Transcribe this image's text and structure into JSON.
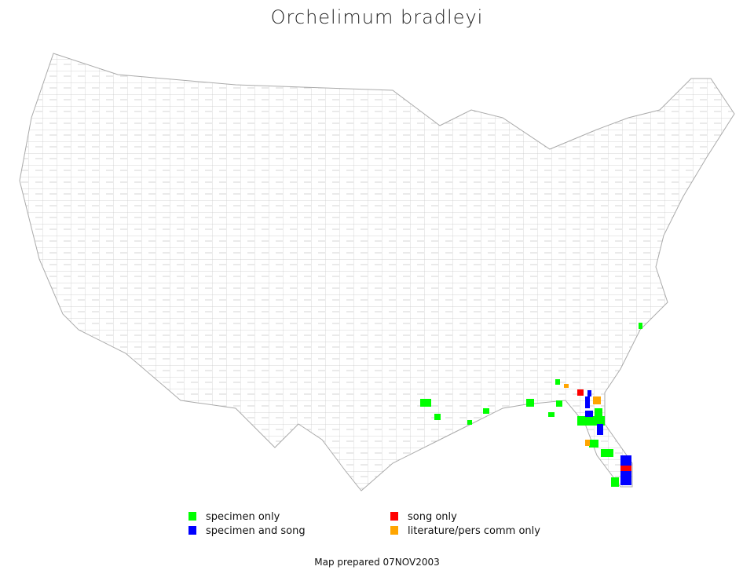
{
  "title": "Orchelimum bradleyi",
  "legend": [
    {
      "label": "specimen only",
      "color": "#00ff00"
    },
    {
      "label": "specimen and song",
      "color": "#0000ff"
    },
    {
      "label": "song only",
      "color": "#ff0000"
    },
    {
      "label": "literature/pers comm only",
      "color": "#ffa500"
    }
  ],
  "footer": "Map prepared 07NOV2003"
}
